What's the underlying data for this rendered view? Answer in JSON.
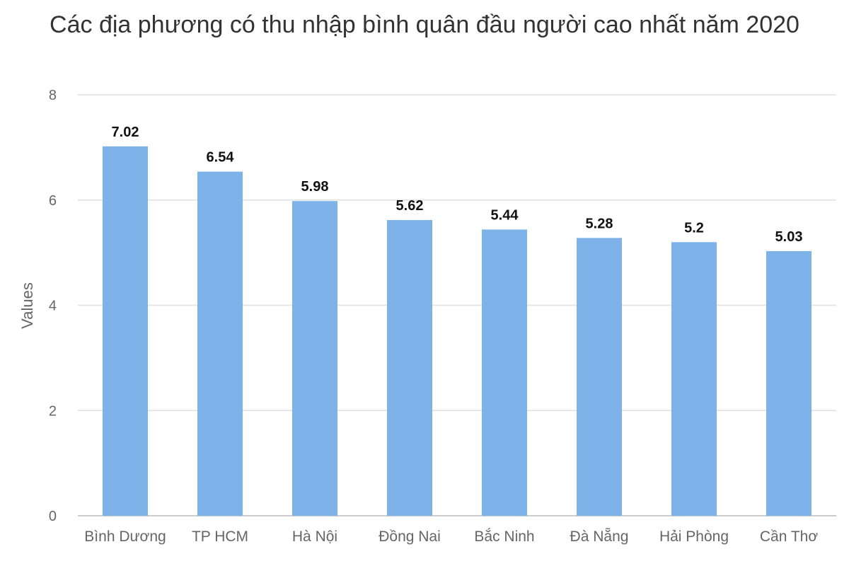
{
  "chart_data": {
    "type": "bar",
    "title": "Các địa phương có thu nhập bình quân đầu người cao nhất năm 2020",
    "xlabel": "",
    "ylabel": "Values",
    "categories": [
      "Bình Dương",
      "TP HCM",
      "Hà Nội",
      "Đồng Nai",
      "Bắc Ninh",
      "Đà Nẵng",
      "Hải Phòng",
      "Cần Thơ"
    ],
    "values": [
      7.02,
      6.54,
      5.98,
      5.62,
      5.44,
      5.28,
      5.2,
      5.03
    ],
    "value_labels": [
      "7.02",
      "6.54",
      "5.98",
      "5.62",
      "5.44",
      "5.28",
      "5.2",
      "5.03"
    ],
    "ylim": [
      0,
      8
    ],
    "yticks": [
      "0",
      "2",
      "4",
      "6",
      "8"
    ],
    "grid": true,
    "bar_color": "#7EB3EA",
    "gridline_color": "#E0E0E0"
  }
}
